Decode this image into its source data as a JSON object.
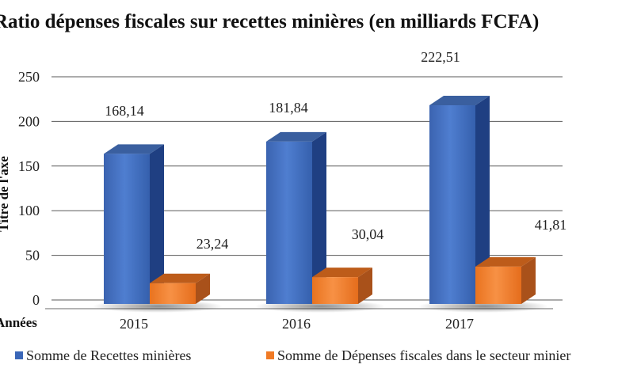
{
  "chart_data": {
    "type": "bar",
    "style": "3d-column",
    "title": "Ratio dépenses fiscales sur recettes minières (en milliards FCFA)",
    "xlabel": "Années",
    "ylabel": "Titre de l'axe",
    "categories": [
      "2015",
      "2016",
      "2017"
    ],
    "ylim": [
      0,
      250
    ],
    "yticks": [
      "0",
      "50",
      "100",
      "150",
      "200",
      "250"
    ],
    "grid": true,
    "legend_position": "bottom",
    "series": [
      {
        "name": "Somme de Recettes minières",
        "values": [
          168.14,
          181.84,
          222.51
        ],
        "labels": [
          "168,14",
          "181,84",
          "222,51"
        ],
        "color": "#3a66b8"
      },
      {
        "name": "Somme de Dépenses fiscales dans le secteur minier",
        "values": [
          23.24,
          30.04,
          41.81
        ],
        "labels": [
          "23,24",
          "30,04",
          "41,81"
        ],
        "color": "#f07a25"
      }
    ]
  }
}
